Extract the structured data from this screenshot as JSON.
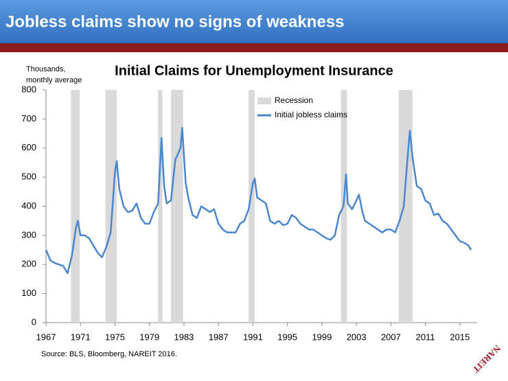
{
  "header": {
    "title": "Jobless claims show no signs of weakness"
  },
  "source": "Source: BLS, Bloomberg, NAREIT 2016.",
  "logo": "NAREIT",
  "chart_data": {
    "type": "line",
    "title": "Initial Claims for Unemployment Insurance",
    "ylabel": [
      "Thousands,",
      "monthly average"
    ],
    "xlim": [
      1967,
      2017
    ],
    "xticks": [
      1967,
      1971,
      1975,
      1979,
      1983,
      1987,
      1991,
      1995,
      1999,
      2003,
      2007,
      2011,
      2015
    ],
    "ylim": [
      0,
      800
    ],
    "yticks": [
      0,
      100,
      200,
      300,
      400,
      500,
      600,
      700,
      800
    ],
    "recessions": {
      "name": "Recession",
      "color": "#d9d9d9",
      "ranges": [
        [
          1969.9,
          1970.9
        ],
        [
          1973.9,
          1975.2
        ],
        [
          1980.0,
          1980.5
        ],
        [
          1981.5,
          1982.9
        ],
        [
          1990.5,
          1991.2
        ],
        [
          2001.2,
          2001.9
        ],
        [
          2007.9,
          2009.5
        ]
      ]
    },
    "x": [
      1967,
      1967.5,
      1968,
      1968.5,
      1969,
      1969.5,
      1970,
      1970.5,
      1970.7,
      1971,
      1971.5,
      1972,
      1972.5,
      1973,
      1973.5,
      1974,
      1974.5,
      1975,
      1975.2,
      1975.5,
      1976,
      1976.5,
      1977,
      1977.5,
      1978,
      1978.5,
      1979,
      1979.5,
      1980,
      1980.4,
      1980.7,
      1981,
      1981.5,
      1982,
      1982.6,
      1982.8,
      1983.2,
      1983.5,
      1984,
      1984.5,
      1985,
      1985.5,
      1986,
      1986.5,
      1987,
      1987.5,
      1988,
      1988.5,
      1989,
      1989.5,
      1990,
      1990.5,
      1991,
      1991.2,
      1991.5,
      1992,
      1992.5,
      1993,
      1993.5,
      1994,
      1994.5,
      1995,
      1995.5,
      1996,
      1996.5,
      1997,
      1997.5,
      1998,
      1998.5,
      1999,
      1999.5,
      2000,
      2000.5,
      2001,
      2001.5,
      2001.8,
      2002,
      2002.5,
      2003,
      2003.3,
      2003.7,
      2004,
      2004.5,
      2005,
      2005.5,
      2006,
      2006.5,
      2007,
      2007.5,
      2008,
      2008.5,
      2009,
      2009.2,
      2009.5,
      2010,
      2010.5,
      2011,
      2011.5,
      2012,
      2012.5,
      2013,
      2013.5,
      2014,
      2014.5,
      2015,
      2015.5,
      2016,
      2016.3
    ],
    "series": [
      {
        "name": "Initial jobless claims",
        "color": "#4a86d0",
        "values": [
          250,
          215,
          205,
          200,
          195,
          170,
          230,
          330,
          350,
          300,
          300,
          290,
          265,
          240,
          225,
          260,
          310,
          520,
          555,
          460,
          400,
          380,
          385,
          410,
          360,
          340,
          340,
          380,
          410,
          635,
          470,
          410,
          420,
          560,
          600,
          670,
          480,
          430,
          370,
          360,
          400,
          390,
          380,
          390,
          340,
          320,
          310,
          310,
          310,
          340,
          350,
          390,
          480,
          495,
          430,
          420,
          410,
          350,
          340,
          350,
          335,
          340,
          370,
          360,
          340,
          330,
          320,
          320,
          310,
          300,
          290,
          285,
          300,
          370,
          400,
          510,
          410,
          390,
          420,
          440,
          380,
          350,
          340,
          330,
          320,
          310,
          320,
          320,
          310,
          350,
          400,
          590,
          660,
          570,
          470,
          460,
          420,
          410,
          370,
          375,
          350,
          340,
          320,
          300,
          280,
          275,
          265,
          250
        ]
      }
    ]
  }
}
